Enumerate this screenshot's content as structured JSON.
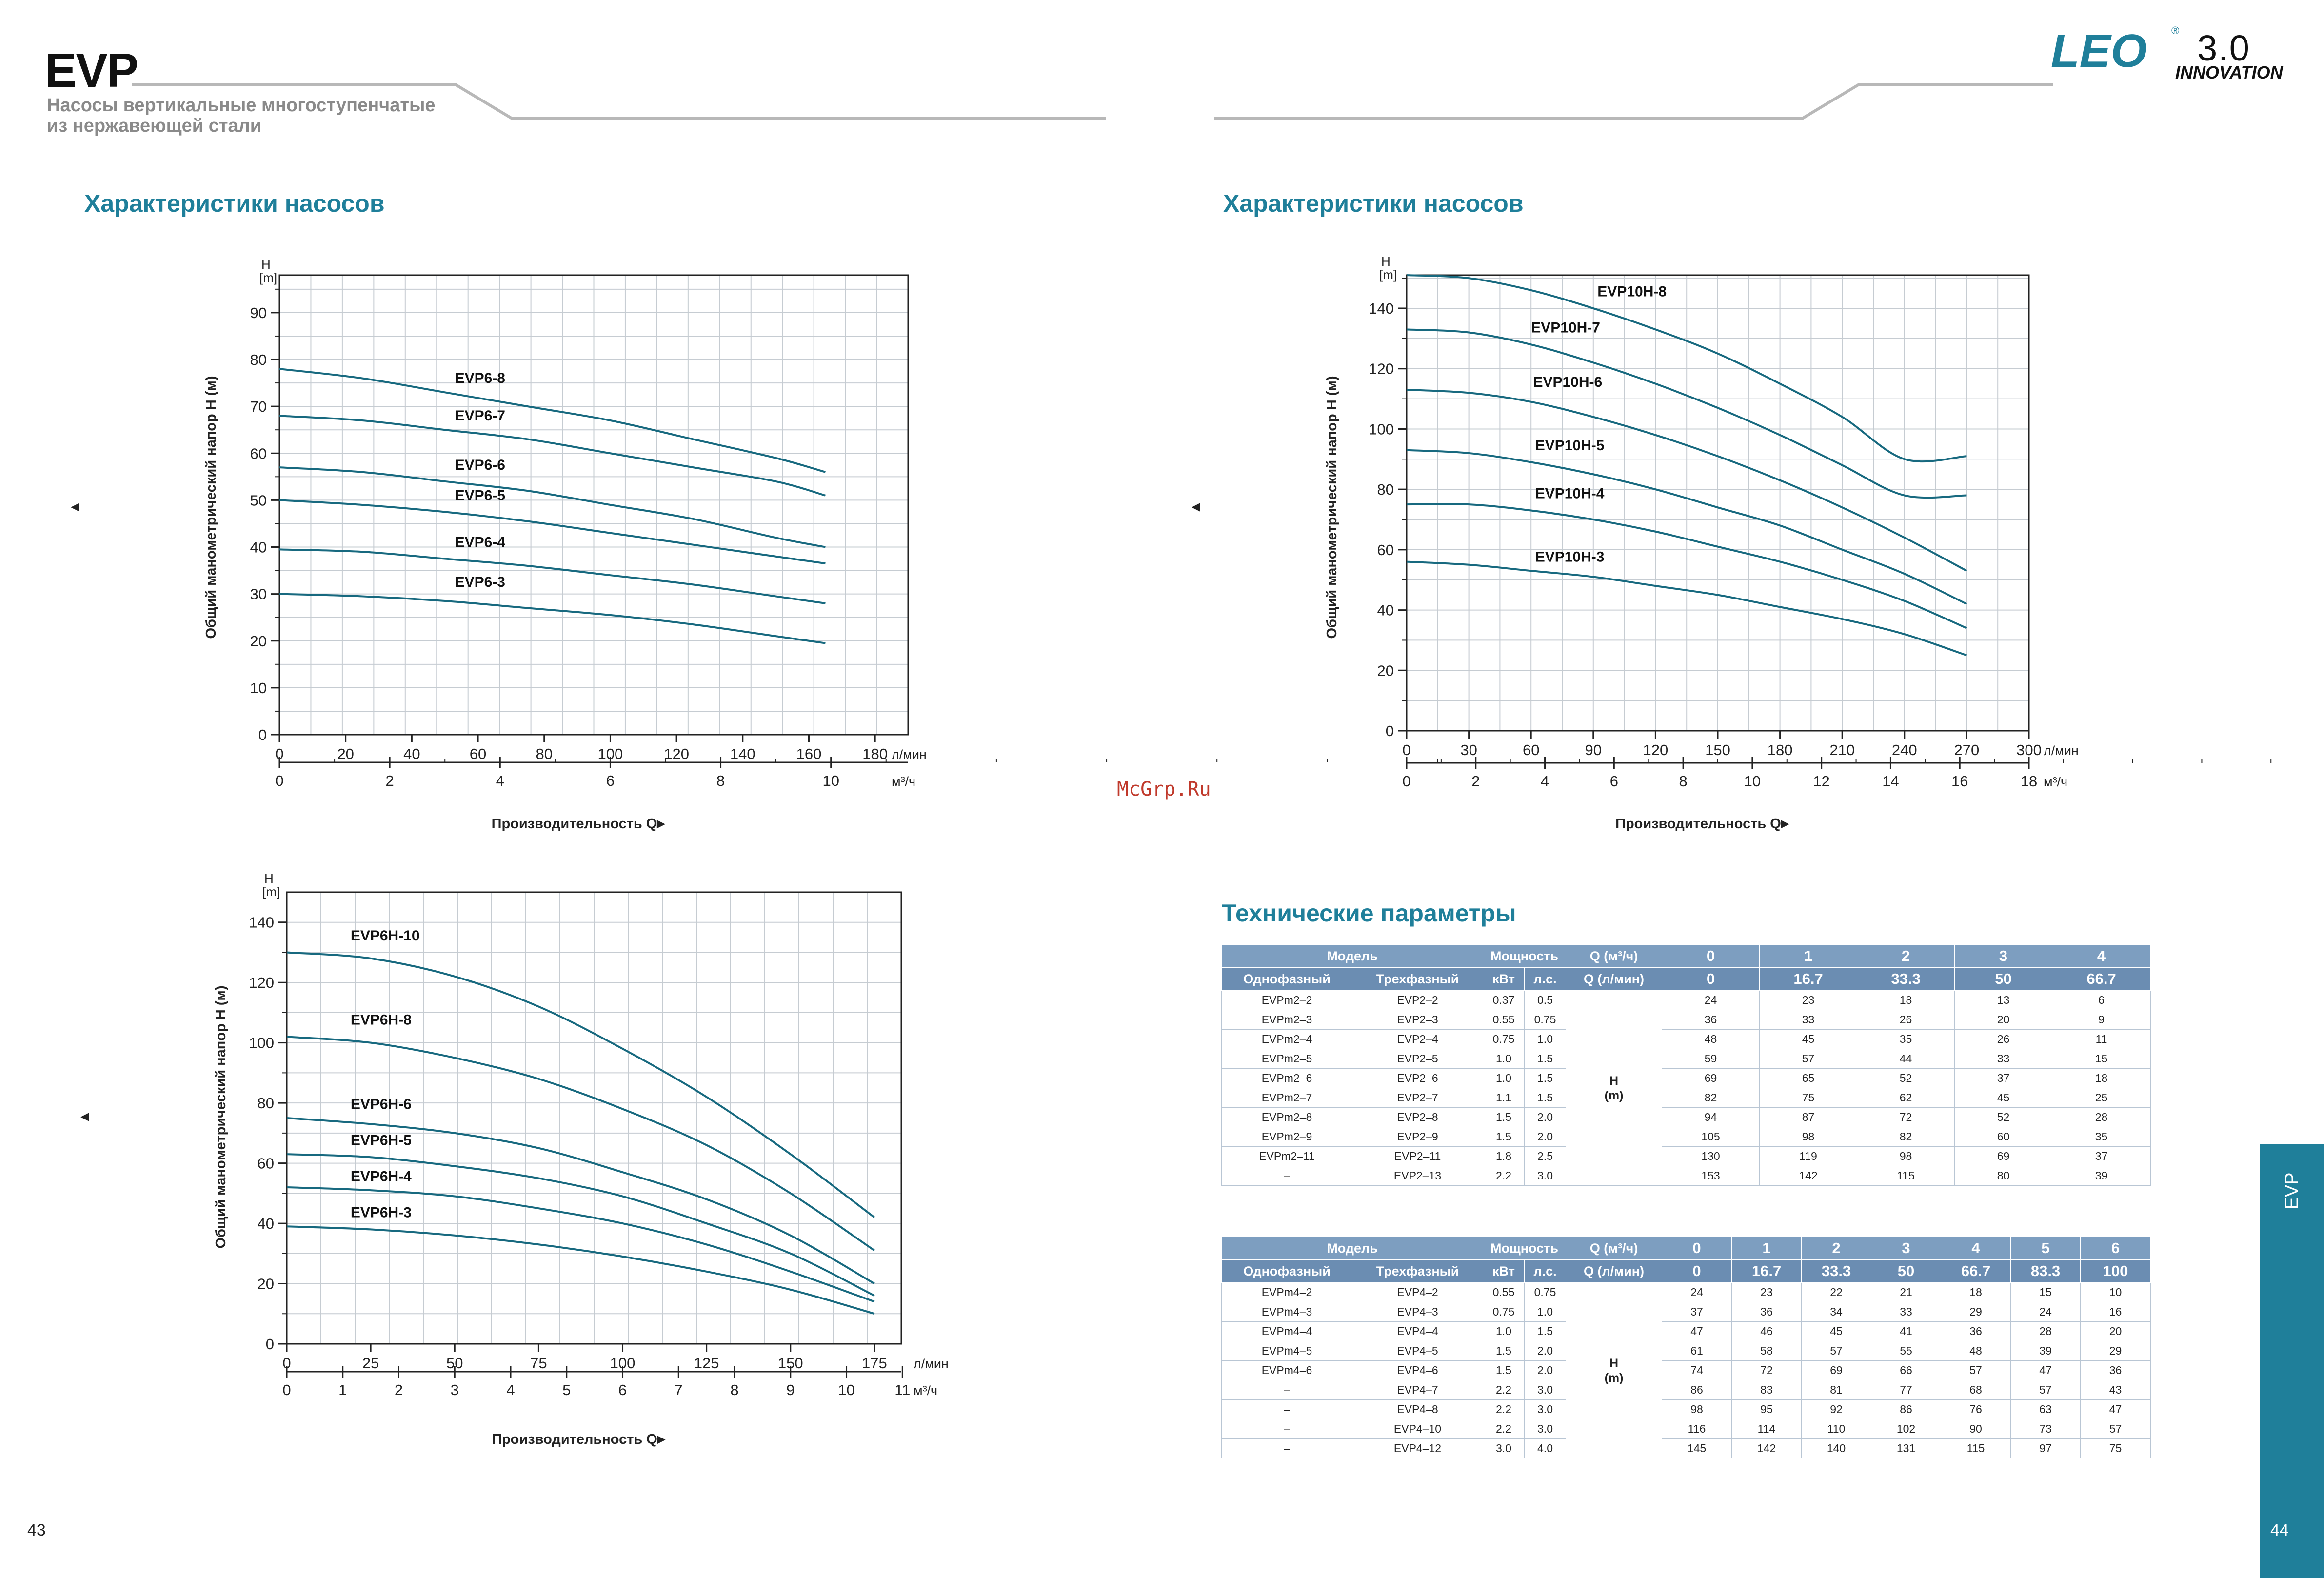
{
  "header": {
    "brand": "EVP",
    "subtitle_line1": "Насосы вертикальные многоступенчатые",
    "subtitle_line2": "из нержавеющей стали",
    "logo_text": "LEO",
    "logo_reg": "®",
    "logo_version": "3.0",
    "logo_tagline": "INNOVATION"
  },
  "sections": {
    "left_title": "Характеристики насосов",
    "right_title": "Характеристики насосов",
    "tech_title": "Технические параметры"
  },
  "watermark": "McGrp.Ru",
  "footer": {
    "page_left": "43",
    "page_right": "44",
    "side_tab": "EVP"
  },
  "colors": {
    "curve": "#17697f",
    "accent": "#1f7f9a",
    "header_row": "#7d9ec0",
    "header_row2": "#6b8db2"
  },
  "chart_data": [
    {
      "id": "evp6",
      "type": "line",
      "ylabel": "Общий манометрический напор H (м)",
      "ylabel_arrow": "▲",
      "y_unit_top": "H",
      "y_unit_bottom": "[m]",
      "xlabel": "Производительность Q",
      "xlabel_arrow": "►",
      "xunit1": "л/мин",
      "xunit2": "м³/ч",
      "ylim": [
        0,
        98
      ],
      "yticks": [
        0,
        10,
        20,
        30,
        40,
        50,
        60,
        70,
        80,
        90
      ],
      "x1lim": [
        0,
        190
      ],
      "x1ticks": [
        0,
        20,
        40,
        60,
        80,
        100,
        120,
        140,
        160,
        180
      ],
      "x2ticks": [
        0,
        2,
        4,
        6,
        8,
        10
      ],
      "x2_per_x1": 0.06,
      "grid": true,
      "series": [
        {
          "name": "EVP6-8",
          "label_at": [
            53,
            75
          ],
          "x": [
            0,
            25,
            50,
            75,
            100,
            125,
            150,
            165
          ],
          "y": [
            78,
            76,
            73,
            70,
            67,
            63,
            59,
            56
          ]
        },
        {
          "name": "EVP6-7",
          "label_at": [
            53,
            67
          ],
          "x": [
            0,
            25,
            50,
            75,
            100,
            125,
            150,
            165
          ],
          "y": [
            68,
            67,
            65,
            63,
            60,
            57,
            54,
            51
          ]
        },
        {
          "name": "EVP6-6",
          "label_at": [
            53,
            56.5
          ],
          "x": [
            0,
            25,
            50,
            75,
            100,
            125,
            150,
            165
          ],
          "y": [
            57,
            56,
            54,
            52,
            49,
            46,
            42,
            40
          ]
        },
        {
          "name": "EVP6-5",
          "label_at": [
            53,
            50
          ],
          "x": [
            0,
            25,
            50,
            75,
            100,
            125,
            150,
            165
          ],
          "y": [
            50,
            49,
            47.5,
            45.5,
            43,
            40.5,
            38,
            36.5
          ]
        },
        {
          "name": "EVP6-4",
          "label_at": [
            53,
            40
          ],
          "x": [
            0,
            25,
            50,
            75,
            100,
            125,
            150,
            165
          ],
          "y": [
            39.5,
            39,
            37.5,
            36,
            34,
            32,
            29.5,
            28
          ]
        },
        {
          "name": "EVP6-3",
          "label_at": [
            53,
            31.5
          ],
          "x": [
            0,
            25,
            50,
            75,
            100,
            125,
            150,
            165
          ],
          "y": [
            30,
            29.5,
            28.5,
            27,
            25.5,
            23.5,
            21,
            19.5
          ]
        }
      ]
    },
    {
      "id": "evp6h",
      "type": "line",
      "ylabel": "Общий манометрический напор H (м)",
      "ylabel_arrow": "▲",
      "y_unit_top": "H",
      "y_unit_bottom": "[m]",
      "xlabel": "Производительность Q",
      "xlabel_arrow": "►",
      "xunit1": "л/мин",
      "xunit2": "м³/ч",
      "ylim": [
        0,
        150
      ],
      "yticks": [
        0,
        20,
        40,
        60,
        80,
        100,
        120,
        140
      ],
      "x1lim": [
        0,
        183
      ],
      "x1ticks": [
        0,
        25,
        50,
        75,
        100,
        125,
        150,
        175
      ],
      "x2ticks": [
        0,
        1,
        2,
        3,
        4,
        5,
        6,
        7,
        8,
        9,
        10,
        11
      ],
      "x2_per_x1": 0.06,
      "grid": true,
      "series": [
        {
          "name": "EVP6H-10",
          "label_at": [
            19,
            134
          ],
          "x": [
            0,
            25,
            50,
            75,
            100,
            125,
            150,
            175
          ],
          "y": [
            130,
            128,
            122,
            112,
            98,
            82,
            63,
            42
          ]
        },
        {
          "name": "EVP6H-8",
          "label_at": [
            19,
            106
          ],
          "x": [
            0,
            25,
            50,
            75,
            100,
            125,
            150,
            175
          ],
          "y": [
            102,
            100,
            95,
            88,
            78,
            66,
            50,
            31
          ]
        },
        {
          "name": "EVP6H-6",
          "label_at": [
            19,
            78
          ],
          "x": [
            0,
            25,
            50,
            75,
            100,
            125,
            150,
            175
          ],
          "y": [
            75,
            73,
            70,
            65,
            57,
            48,
            36,
            20
          ]
        },
        {
          "name": "EVP6H-5",
          "label_at": [
            19,
            66
          ],
          "x": [
            0,
            25,
            50,
            75,
            100,
            125,
            150,
            175
          ],
          "y": [
            63,
            62,
            59,
            55,
            49,
            40,
            30,
            16
          ]
        },
        {
          "name": "EVP6H-4",
          "label_at": [
            19,
            54
          ],
          "x": [
            0,
            25,
            50,
            75,
            100,
            125,
            150,
            175
          ],
          "y": [
            52,
            51,
            49,
            45,
            40,
            33,
            24,
            14
          ]
        },
        {
          "name": "EVP6H-3",
          "label_at": [
            19,
            42
          ],
          "x": [
            0,
            25,
            50,
            75,
            100,
            125,
            150,
            175
          ],
          "y": [
            39,
            38,
            36,
            33,
            29,
            24,
            18,
            10
          ]
        }
      ]
    },
    {
      "id": "evp10h",
      "type": "line",
      "ylabel": "Общий манометрический напор H (м)",
      "ylabel_arrow": "▲",
      "y_unit_top": "H",
      "y_unit_bottom": "[m]",
      "xlabel": "Производительность Q",
      "xlabel_arrow": "►",
      "xunit1": "л/мин",
      "xunit2": "м³/ч",
      "ylim": [
        0,
        151
      ],
      "yticks": [
        0,
        20,
        40,
        60,
        80,
        100,
        120,
        140
      ],
      "x1lim": [
        0,
        300
      ],
      "x1ticks": [
        0,
        30,
        60,
        90,
        120,
        150,
        180,
        210,
        240,
        270,
        300
      ],
      "x2ticks": [
        0,
        2,
        4,
        6,
        8,
        10,
        12,
        14,
        16,
        18
      ],
      "x2_per_x1": 0.06,
      "grid": true,
      "series": [
        {
          "name": "EVP10H-8",
          "label_at": [
            92,
            144
          ],
          "x": [
            0,
            30,
            60,
            90,
            120,
            150,
            180,
            210,
            240,
            270
          ],
          "y": [
            151,
            150,
            146,
            140,
            133,
            125,
            115,
            104,
            90,
            91
          ]
        },
        {
          "name": "EVP10H-7",
          "label_at": [
            60,
            132
          ],
          "x": [
            0,
            30,
            60,
            90,
            120,
            150,
            180,
            210,
            240,
            270
          ],
          "y": [
            133,
            132,
            128,
            122,
            115,
            107,
            98,
            88,
            78,
            78
          ]
        },
        {
          "name": "EVP10H-6",
          "label_at": [
            61,
            114
          ],
          "x": [
            0,
            30,
            60,
            90,
            120,
            150,
            180,
            210,
            240,
            270
          ],
          "y": [
            113,
            112,
            109,
            104,
            98,
            91,
            83,
            74,
            64,
            53
          ]
        },
        {
          "name": "EVP10H-5",
          "label_at": [
            62,
            93
          ],
          "x": [
            0,
            30,
            60,
            90,
            120,
            150,
            180,
            210,
            240,
            270
          ],
          "y": [
            93,
            92,
            89,
            85,
            80,
            74,
            68,
            60,
            52,
            42
          ]
        },
        {
          "name": "EVP10H-4",
          "label_at": [
            62,
            77
          ],
          "x": [
            0,
            30,
            60,
            90,
            120,
            150,
            180,
            210,
            240,
            270
          ],
          "y": [
            75,
            75,
            73,
            70,
            66,
            61,
            56,
            50,
            43,
            34
          ]
        },
        {
          "name": "EVP10H-3",
          "label_at": [
            62,
            56
          ],
          "x": [
            0,
            30,
            60,
            90,
            120,
            150,
            180,
            210,
            240,
            270
          ],
          "y": [
            56,
            55,
            53,
            51,
            48,
            45,
            41,
            37,
            32,
            25
          ]
        }
      ]
    }
  ],
  "table2": {
    "head": {
      "model": "Модель",
      "power": "Мощность",
      "q_m3": "Q (м³/ч)",
      "single": "Однофазный",
      "three": "Трехфазный",
      "kw": "кВт",
      "hp": "л.с.",
      "q_lmin": "Q (л/мин)",
      "q_m3_vals": [
        "0",
        "1",
        "2",
        "3",
        "4"
      ],
      "q_lmin_vals": [
        "0",
        "16.7",
        "33.3",
        "50",
        "66.7"
      ],
      "h_label": "H",
      "h_unit": "(m)"
    },
    "rows": [
      [
        "EVPm2–2",
        "EVP2–2",
        "0.37",
        "0.5",
        "24",
        "23",
        "18",
        "13",
        "6"
      ],
      [
        "EVPm2–3",
        "EVP2–3",
        "0.55",
        "0.75",
        "36",
        "33",
        "26",
        "20",
        "9"
      ],
      [
        "EVPm2–4",
        "EVP2–4",
        "0.75",
        "1.0",
        "48",
        "45",
        "35",
        "26",
        "11"
      ],
      [
        "EVPm2–5",
        "EVP2–5",
        "1.0",
        "1.5",
        "59",
        "57",
        "44",
        "33",
        "15"
      ],
      [
        "EVPm2–6",
        "EVP2–6",
        "1.0",
        "1.5",
        "69",
        "65",
        "52",
        "37",
        "18"
      ],
      [
        "EVPm2–7",
        "EVP2–7",
        "1.1",
        "1.5",
        "82",
        "75",
        "62",
        "45",
        "25"
      ],
      [
        "EVPm2–8",
        "EVP2–8",
        "1.5",
        "2.0",
        "94",
        "87",
        "72",
        "52",
        "28"
      ],
      [
        "EVPm2–9",
        "EVP2–9",
        "1.5",
        "2.0",
        "105",
        "98",
        "82",
        "60",
        "35"
      ],
      [
        "EVPm2–11",
        "EVP2–11",
        "1.8",
        "2.5",
        "130",
        "119",
        "98",
        "69",
        "37"
      ],
      [
        "–",
        "EVP2–13",
        "2.2",
        "3.0",
        "153",
        "142",
        "115",
        "80",
        "39"
      ]
    ]
  },
  "table4": {
    "head": {
      "model": "Модель",
      "power": "Мощность",
      "q_m3": "Q (м³/ч)",
      "single": "Однофазный",
      "three": "Трехфазный",
      "kw": "кВт",
      "hp": "л.с.",
      "q_lmin": "Q (л/мин)",
      "q_m3_vals": [
        "0",
        "1",
        "2",
        "3",
        "4",
        "5",
        "6"
      ],
      "q_lmin_vals": [
        "0",
        "16.7",
        "33.3",
        "50",
        "66.7",
        "83.3",
        "100"
      ],
      "h_label": "H",
      "h_unit": "(m)"
    },
    "rows": [
      [
        "EVPm4–2",
        "EVP4–2",
        "0.55",
        "0.75",
        "24",
        "23",
        "22",
        "21",
        "18",
        "15",
        "10"
      ],
      [
        "EVPm4–3",
        "EVP4–3",
        "0.75",
        "1.0",
        "37",
        "36",
        "34",
        "33",
        "29",
        "24",
        "16"
      ],
      [
        "EVPm4–4",
        "EVP4–4",
        "1.0",
        "1.5",
        "47",
        "46",
        "45",
        "41",
        "36",
        "28",
        "20"
      ],
      [
        "EVPm4–5",
        "EVP4–5",
        "1.5",
        "2.0",
        "61",
        "58",
        "57",
        "55",
        "48",
        "39",
        "29"
      ],
      [
        "EVPm4–6",
        "EVP4–6",
        "1.5",
        "2.0",
        "74",
        "72",
        "69",
        "66",
        "57",
        "47",
        "36"
      ],
      [
        "–",
        "EVP4–7",
        "2.2",
        "3.0",
        "86",
        "83",
        "81",
        "77",
        "68",
        "57",
        "43"
      ],
      [
        "–",
        "EVP4–8",
        "2.2",
        "3.0",
        "98",
        "95",
        "92",
        "86",
        "76",
        "63",
        "47"
      ],
      [
        "–",
        "EVP4–10",
        "2.2",
        "3.0",
        "116",
        "114",
        "110",
        "102",
        "90",
        "73",
        "57"
      ],
      [
        "–",
        "EVP4–12",
        "3.0",
        "4.0",
        "145",
        "142",
        "140",
        "131",
        "115",
        "97",
        "75"
      ]
    ]
  }
}
